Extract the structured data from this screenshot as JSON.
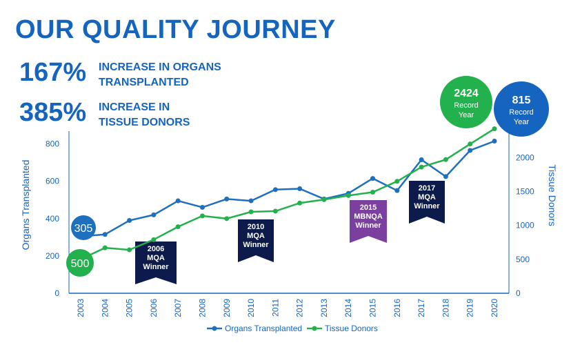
{
  "header": {
    "title": "OUR QUALITY JOURNEY",
    "stats": [
      {
        "number": "167%",
        "line1": "INCREASE IN ORGANS",
        "line2": "TRANSPLANTED"
      },
      {
        "number": "385%",
        "line1": "INCREASE IN",
        "line2": "TISSUE DONORS"
      }
    ]
  },
  "chart_data": {
    "type": "line",
    "categories": [
      "2003",
      "2004",
      "2005",
      "2006",
      "2007",
      "2008",
      "2009",
      "2010",
      "2011",
      "2012",
      "2013",
      "2014",
      "2015",
      "2016",
      "2017",
      "2018",
      "2019",
      "2020"
    ],
    "series": [
      {
        "name": "Organs Transplanted",
        "axis": "left",
        "color": "#1f6fbf",
        "values": [
          305,
          315,
          390,
          420,
          495,
          460,
          505,
          495,
          555,
          560,
          505,
          535,
          615,
          550,
          715,
          625,
          765,
          815
        ]
      },
      {
        "name": "Tissue Donors",
        "axis": "right",
        "color": "#22b14c",
        "values": [
          500,
          670,
          640,
          790,
          980,
          1140,
          1100,
          1200,
          1210,
          1330,
          1380,
          1440,
          1490,
          1650,
          1860,
          1970,
          2200,
          2424
        ]
      }
    ],
    "ylabel": "Organs Transplanted",
    "ylabel_right": "Tissue Donors",
    "ylim": [
      0,
      850
    ],
    "ylim_right": [
      0,
      2400
    ],
    "yticks": [
      0,
      200,
      400,
      600,
      800
    ],
    "yticks_right": [
      0,
      500,
      1000,
      1500,
      2000
    ],
    "legend_position": "bottom-center",
    "grid": false,
    "start_labels": [
      {
        "series": 0,
        "text": "305",
        "color": "#1f6fbf"
      },
      {
        "series": 1,
        "text": "500",
        "color": "#22b14c"
      }
    ],
    "annotations": [
      {
        "year": "2006",
        "lines": [
          "2006",
          "MQA",
          "Winner"
        ],
        "color": "#0d1b4c"
      },
      {
        "year": "2010",
        "lines": [
          "2010",
          "MQA",
          "Winner"
        ],
        "color": "#0d1b4c"
      },
      {
        "year": "2015",
        "lines": [
          "2015",
          "MBNQA",
          "Winner"
        ],
        "color": "#7b3fa0"
      },
      {
        "year": "2017",
        "lines": [
          "2017",
          "MQA",
          "Winner"
        ],
        "color": "#0d1b4c"
      }
    ],
    "record_badges": [
      {
        "value": "2424",
        "line1": "Record",
        "line2": "Year",
        "color": "#22b14c"
      },
      {
        "value": "815",
        "line1": "Record",
        "line2": "Year",
        "color": "#1565c0"
      }
    ]
  }
}
